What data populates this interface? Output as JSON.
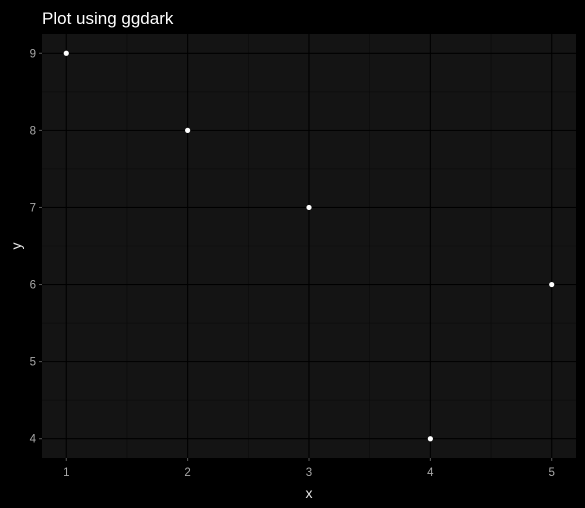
{
  "chart_data": {
    "type": "scatter",
    "title": "Plot using ggdark",
    "xlabel": "x",
    "ylabel": "y",
    "xlim": [
      0.8,
      5.2
    ],
    "ylim": [
      3.75,
      9.25
    ],
    "x_ticks": [
      1,
      2,
      3,
      4,
      5
    ],
    "y_ticks": [
      4,
      5,
      6,
      7,
      8,
      9
    ],
    "grid": true,
    "points": [
      {
        "x": 1,
        "y": 9
      },
      {
        "x": 2,
        "y": 8
      },
      {
        "x": 3,
        "y": 7
      },
      {
        "x": 4,
        "y": 4
      },
      {
        "x": 5,
        "y": 6
      }
    ],
    "colors": {
      "background": "#000000",
      "panel": "#141414",
      "grid_major": "#000000",
      "grid_minor": "#0b0b0b",
      "point": "#ffffff",
      "tick_label": "#a8a8a8",
      "title": "#ffffff"
    }
  }
}
